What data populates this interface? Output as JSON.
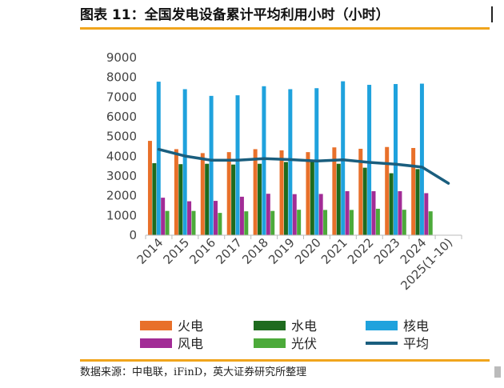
{
  "header": {
    "title": "图表 11：全国发电设备累计平均利用小时（小时）"
  },
  "footer": {
    "source": "数据来源：中电联，iFinD，英大证券研究所整理"
  },
  "colors": {
    "accent_rule": "#f0a51c",
    "axis": "#444444"
  },
  "chart_data": {
    "type": "bar",
    "title": "全国发电设备累计平均利用小时（小时）",
    "xlabel": "",
    "ylabel": "",
    "ylim": [
      0,
      9000
    ],
    "yticks": [
      "0",
      "1000",
      "2000",
      "3000",
      "4000",
      "5000",
      "6000",
      "7000",
      "8000",
      "9000"
    ],
    "categories": [
      "2014",
      "2015",
      "2016",
      "2017",
      "2018",
      "2019",
      "2020",
      "2021",
      "2022",
      "2023",
      "2024",
      "2025(1-10)"
    ],
    "series": [
      {
        "name": "火电",
        "kind": "bar",
        "color": "#e8702a",
        "values": [
          4780,
          4360,
          4160,
          4210,
          4360,
          4300,
          4210,
          4450,
          4380,
          4470,
          4420,
          null
        ]
      },
      {
        "name": "水电",
        "kind": "bar",
        "color": "#1e6b1e",
        "values": [
          3650,
          3600,
          3620,
          3580,
          3620,
          3710,
          3830,
          3620,
          3420,
          3140,
          3350,
          null
        ]
      },
      {
        "name": "核电",
        "kind": "bar",
        "color": "#1fa2dd",
        "values": [
          7780,
          7400,
          7060,
          7090,
          7550,
          7400,
          7450,
          7800,
          7620,
          7660,
          7680,
          null
        ]
      },
      {
        "name": "风电",
        "kind": "bar",
        "color": "#a22c96",
        "values": [
          1900,
          1720,
          1740,
          1950,
          2100,
          2080,
          2090,
          2230,
          2230,
          2230,
          2130,
          null
        ]
      },
      {
        "name": "光伏",
        "kind": "bar",
        "color": "#4caa3a",
        "values": [
          1230,
          1230,
          1130,
          1210,
          1230,
          1290,
          1280,
          1280,
          1340,
          1290,
          1210,
          null
        ]
      },
      {
        "name": "平均",
        "kind": "line",
        "color": "#1a5e7e",
        "values": [
          4350,
          4010,
          3800,
          3800,
          3880,
          3830,
          3760,
          3820,
          3690,
          3600,
          3450,
          2630
        ]
      }
    ],
    "legend": {
      "position": "bottom",
      "entries": [
        "火电",
        "水电",
        "核电",
        "风电",
        "光伏",
        "平均"
      ]
    },
    "grid": false
  }
}
